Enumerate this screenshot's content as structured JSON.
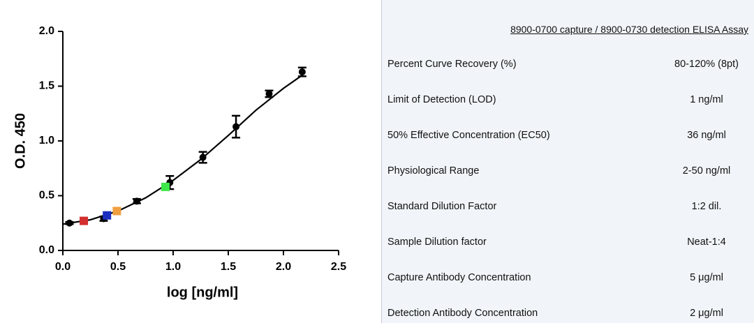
{
  "chart_data": {
    "type": "scatter",
    "xlabel": "log [ng/ml]",
    "ylabel": "O.D. 450",
    "xlim": [
      0,
      2.5
    ],
    "ylim": [
      0,
      2.0
    ],
    "xticks": [
      {
        "value": 0,
        "label": "0.0"
      },
      0.5,
      {
        "value": 1,
        "label": "1.0"
      },
      1.5,
      {
        "value": 2,
        "label": "2.0"
      },
      2.5
    ],
    "yticks": [
      {
        "value": 0,
        "label": "0.0"
      },
      0.5,
      {
        "value": 1,
        "label": "1.0"
      },
      1.5,
      {
        "value": 2,
        "label": "2.0"
      }
    ],
    "series": [
      {
        "color": "#000000",
        "x": [
          0.06,
          0.37,
          0.67,
          0.97,
          1.27,
          1.57,
          1.87,
          2.17
        ],
        "values": [
          0.25,
          0.29,
          0.45,
          0.62,
          0.85,
          1.13,
          1.43,
          1.63
        ],
        "errors": [
          0.01,
          0.02,
          0.02,
          0.06,
          0.05,
          0.1,
          0.03,
          0.04
        ]
      },
      {
        "colors": [
          "#d32f2f",
          "#1a2fc0",
          "#f0a040",
          "#3ee84a"
        ],
        "x": [
          0.19,
          0.4,
          0.49,
          0.93
        ],
        "values": [
          0.27,
          0.32,
          0.36,
          0.58
        ]
      }
    ],
    "curve": {
      "color": "#000000",
      "x": [
        0.0,
        0.25,
        0.5,
        0.75,
        1.0,
        1.25,
        1.5,
        1.75,
        2.0,
        2.17
      ],
      "values": [
        0.24,
        0.28,
        0.36,
        0.48,
        0.64,
        0.83,
        1.05,
        1.28,
        1.48,
        1.6
      ]
    }
  },
  "table": {
    "title": "8900-0700 capture / 8900-0730 detection ELISA Assay",
    "rows": [
      [
        "Percent Curve Recovery (%)",
        "80-120% (8pt)"
      ],
      [
        "Limit of Detection (LOD)",
        "1 ng/ml"
      ],
      [
        "50% Effective Concentration (EC50)",
        "36 ng/ml"
      ],
      [
        "Physiological Range",
        "2-50 ng/ml"
      ],
      [
        "Standard Dilution Factor",
        "1:2 dil."
      ],
      [
        "Sample Dilution factor",
        "Neat-1:4"
      ],
      [
        "Capture Antibody Concentration",
        "5 μg/ml"
      ],
      [
        "Detection Antibody Concentration",
        "2 μg/ml"
      ]
    ]
  }
}
